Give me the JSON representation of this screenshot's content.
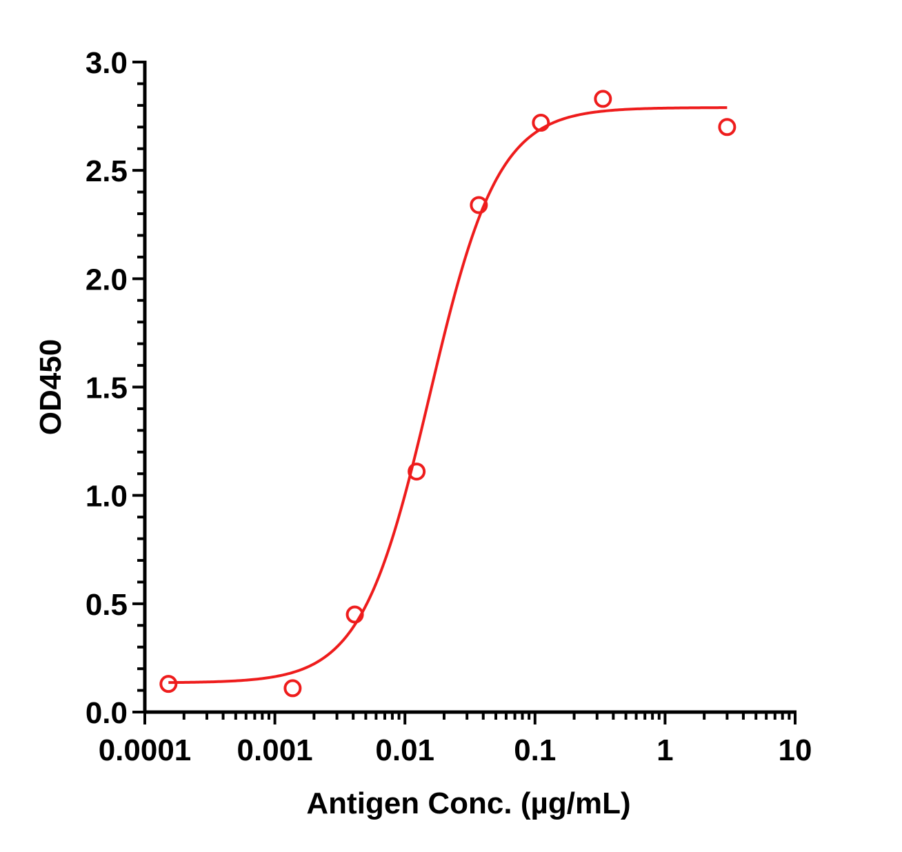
{
  "chart_data": {
    "type": "scatter",
    "title": "",
    "xlabel": "Antigen Conc. (µg/mL)",
    "ylabel": "OD450",
    "x_scale": "log",
    "xlim": [
      0.0001,
      10
    ],
    "ylim": [
      0,
      3.0
    ],
    "x_ticks": [
      {
        "value": 0.0001,
        "label": "0.0001"
      },
      {
        "value": 0.001,
        "label": "0.001"
      },
      {
        "value": 0.01,
        "label": "0.01"
      },
      {
        "value": 0.1,
        "label": "0.1"
      },
      {
        "value": 1,
        "label": "1"
      },
      {
        "value": 10,
        "label": "10"
      }
    ],
    "y_ticks": [
      {
        "value": 0,
        "label": "0.0"
      },
      {
        "value": 0.5,
        "label": "0.5"
      },
      {
        "value": 1.0,
        "label": "1.0"
      },
      {
        "value": 1.5,
        "label": "1.5"
      },
      {
        "value": 2.0,
        "label": "2.0"
      },
      {
        "value": 2.5,
        "label": "2.5"
      },
      {
        "value": 3.0,
        "label": "3.0"
      }
    ],
    "grid": false,
    "legend": "none",
    "color": "#ee1c1c",
    "series": [
      {
        "points": [
          {
            "x": 0.000152,
            "y": 0.13
          },
          {
            "x": 0.00137,
            "y": 0.11
          },
          {
            "x": 0.00412,
            "y": 0.45
          },
          {
            "x": 0.0123,
            "y": 1.11
          },
          {
            "x": 0.037,
            "y": 2.34
          },
          {
            "x": 0.111,
            "y": 2.72
          },
          {
            "x": 0.333,
            "y": 2.83
          },
          {
            "x": 3.0,
            "y": 2.7
          }
        ],
        "fit": {
          "model": "4PL",
          "bottom": 0.135,
          "top": 2.79,
          "ec50": 0.0155,
          "hill": 1.65,
          "x_range": [
            0.000152,
            3.0
          ]
        }
      }
    ]
  }
}
